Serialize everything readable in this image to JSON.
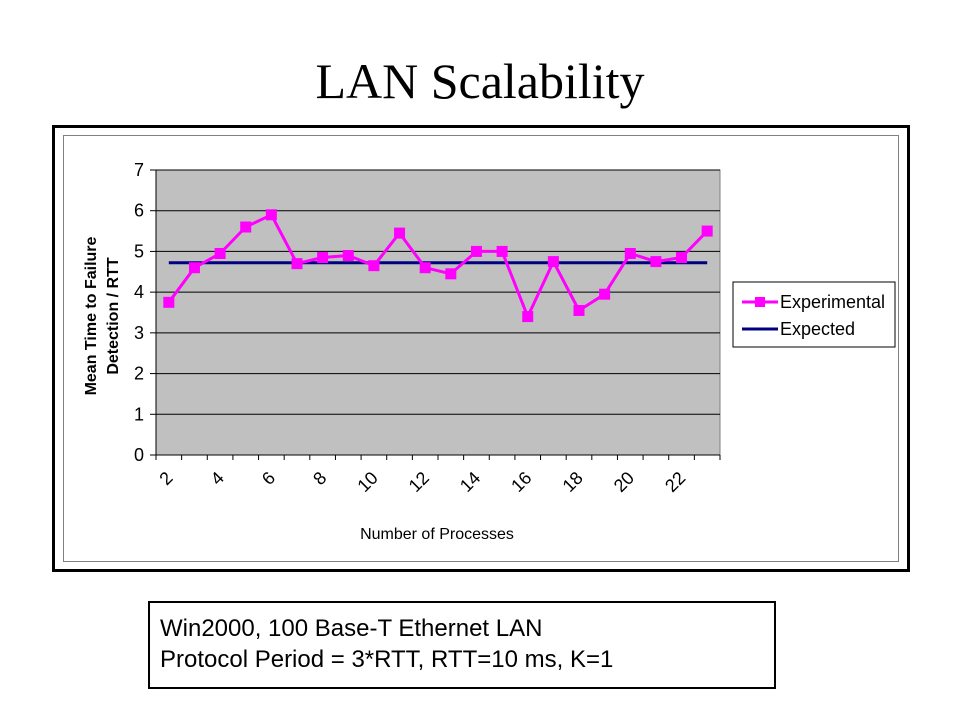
{
  "slide": {
    "title": "LAN Scalability",
    "note_line1": "Win2000, 100 Base-T Ethernet LAN",
    "note_line2": "Protocol Period = 3*RTT, RTT=10 ms, K=1"
  },
  "chart_data": {
    "type": "line",
    "title": "",
    "xlabel": "Number of Processes",
    "ylabel_line1": "Mean Time to Failure",
    "ylabel_line2": "Detection / RTT",
    "ylim": [
      0,
      7
    ],
    "yticks": [
      "0",
      "1",
      "2",
      "3",
      "4",
      "5",
      "6",
      "7"
    ],
    "xticks": [
      "2",
      "4",
      "6",
      "8",
      "10",
      "12",
      "14",
      "16",
      "18",
      "20",
      "22"
    ],
    "x": [
      2,
      3,
      4,
      5,
      6,
      7,
      8,
      9,
      10,
      11,
      12,
      13,
      14,
      15,
      16,
      17,
      18,
      19,
      20,
      21,
      22,
      23
    ],
    "series": [
      {
        "name": "Experimental",
        "color": "#ff00ff",
        "marker": "square",
        "values": [
          3.75,
          4.6,
          4.95,
          5.6,
          5.9,
          4.7,
          4.85,
          4.9,
          4.65,
          5.45,
          4.6,
          4.45,
          5.0,
          5.0,
          3.4,
          4.75,
          3.55,
          3.95,
          4.95,
          4.75,
          4.85,
          5.5
        ]
      },
      {
        "name": "Expected",
        "color": "#000080",
        "marker": "none",
        "values": [
          4.72,
          4.72,
          4.72,
          4.72,
          4.72,
          4.72,
          4.72,
          4.72,
          4.72,
          4.72,
          4.72,
          4.72,
          4.72,
          4.72,
          4.72,
          4.72,
          4.72,
          4.72,
          4.72,
          4.72,
          4.72,
          4.72
        ]
      }
    ],
    "plot_background": "#c0c0c0",
    "grid": true,
    "legend_position": "right"
  }
}
